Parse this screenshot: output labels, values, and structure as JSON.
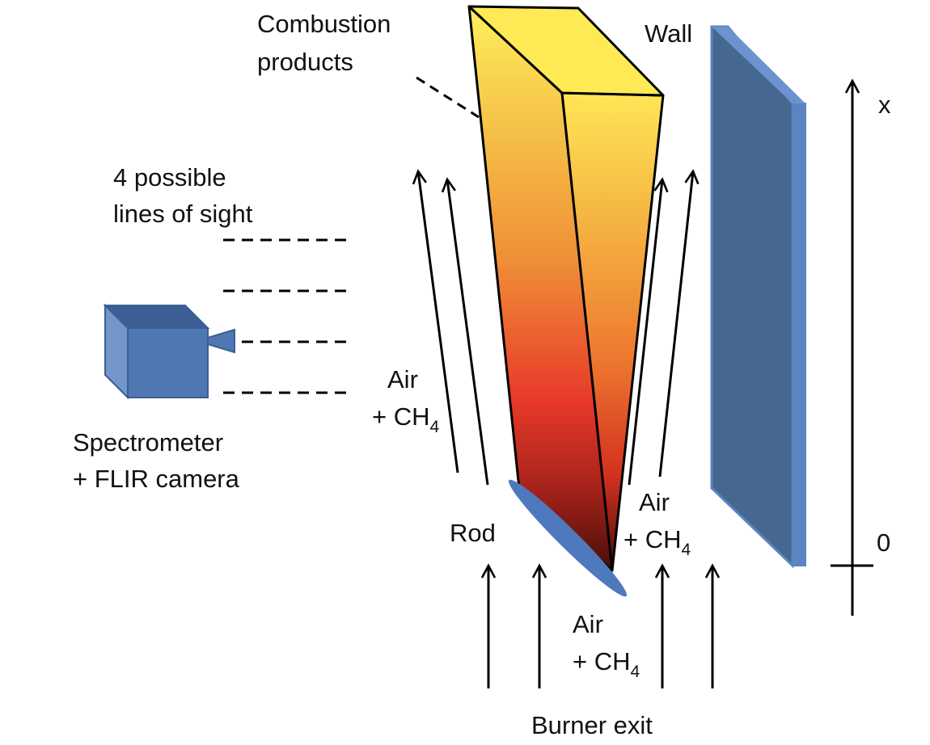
{
  "labels": {
    "combustion_line1": "Combustion",
    "combustion_line2": "products",
    "wall": "Wall",
    "axis_x": "x",
    "axis_zero": "0",
    "sight_line1": "4 possible",
    "sight_line2": "lines of sight",
    "spectrometer_line1": "Spectrometer",
    "spectrometer_line2": "+ FLIR camera",
    "rod": "Rod",
    "burner_exit": "Burner exit",
    "air": "Air",
    "plus_ch": "+ CH",
    "sub4": "4"
  },
  "colors": {
    "flame_top": "#ffef5c",
    "flame_mid": "#f0a23c",
    "flame_red": "#e8392a",
    "flame_bottom": "#4a0d08",
    "wall_front": "#46678f",
    "wall_side": "#5b84c0",
    "camera_front": "#4f77b3",
    "camera_top": "#3b5f94",
    "camera_side": "#7296c9",
    "rod": "#4f79bd",
    "ink": "#000000"
  }
}
